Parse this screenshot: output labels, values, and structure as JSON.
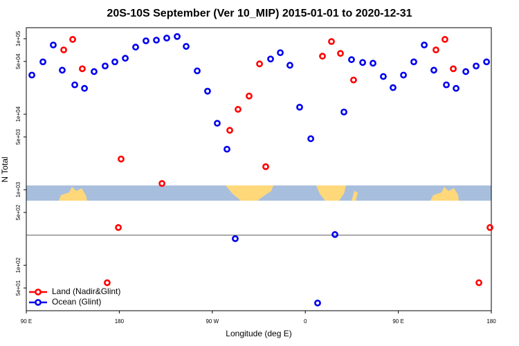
{
  "chart_data": {
    "type": "scatter",
    "title": "20S-10S September (Ver 10_MIP)   2015-01-01 to 2020-12-31",
    "xlabel": "Longitude (deg E)",
    "ylabel": "N Total",
    "xlim": [
      90,
      540
    ],
    "xticks": [
      {
        "value": 90,
        "label": "90 E"
      },
      {
        "value": 180,
        "label": "180"
      },
      {
        "value": 270,
        "label": "90 W"
      },
      {
        "value": 360,
        "label": "0"
      },
      {
        "value": 450,
        "label": "90 E"
      },
      {
        "value": 540,
        "label": "180"
      }
    ],
    "ylim": [
      25,
      140000
    ],
    "ylog": true,
    "yticks": [
      {
        "value": 100000,
        "label": "1e+05"
      },
      {
        "value": 50000,
        "label": "5e+04"
      },
      {
        "value": 10000,
        "label": "1e+04"
      },
      {
        "value": 5000,
        "label": "5e+03"
      },
      {
        "value": 1000,
        "label": "1e+03"
      },
      {
        "value": 500,
        "label": "5e+02"
      },
      {
        "value": 100,
        "label": "1e+02"
      },
      {
        "value": 50,
        "label": "5e+01"
      }
    ],
    "reference_line": 250,
    "legend": "bottom-left",
    "series": [
      {
        "name": "Land (Nadir&Glint)",
        "color": "#ff0000",
        "x": [
          126.2,
          134.9,
          144.2,
          168.3,
          179.1,
          181.7,
          221.3,
          286.9,
          294.9,
          305.6,
          315.7,
          321.7,
          376.6,
          385.3,
          394.0,
          406.7,
          486.4,
          495.1,
          503.2,
          528.0,
          538.7
        ],
        "values": [
          71100,
          97900,
          40000,
          58.7,
          316,
          2550,
          1210,
          6120,
          11600,
          17400,
          46400,
          2020,
          58700,
          91800,
          63900,
          28400,
          71100,
          97900,
          40000,
          58.7,
          316
        ]
      },
      {
        "name": "Ocean (Glint)",
        "color": "#0000ee",
        "x": [
          95.4,
          106.1,
          116.1,
          124.8,
          136.9,
          146.3,
          155.6,
          166.3,
          175.7,
          185.8,
          195.8,
          205.8,
          215.9,
          225.9,
          236.0,
          244.7,
          255.4,
          265.4,
          274.8,
          284.2,
          292.2,
          326.4,
          335.8,
          345.1,
          354.5,
          365.3,
          371.9,
          388.7,
          397.4,
          404.7,
          415.5,
          425.5,
          435.5,
          444.9,
          455.0,
          465.0,
          475.1,
          484.4,
          496.5,
          505.9,
          515.3,
          525.3,
          535.4
        ],
        "values": [
          33000,
          49400,
          82600,
          38300,
          24500,
          22000,
          36700,
          43500,
          49400,
          55100,
          77400,
          93800,
          95800,
          102000,
          107000,
          79100,
          37500,
          20200,
          7590,
          3440,
          225,
          53900,
          65300,
          44500,
          12400,
          4740,
          31.6,
          255,
          10700,
          52800,
          48400,
          47400,
          31600,
          22500,
          33000,
          49400,
          82600,
          38300,
          24500,
          22000,
          36700,
          43500,
          49400
        ]
      }
    ]
  }
}
